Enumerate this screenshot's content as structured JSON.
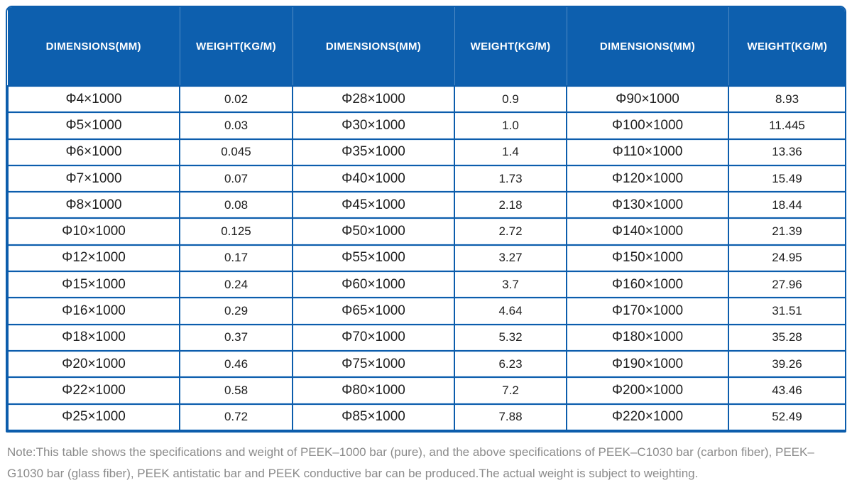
{
  "table": {
    "header_labels": [
      "DIMENSIONS(MM)",
      "WEIGHT(KG/M)",
      "DIMENSIONS(MM)",
      "WEIGHT(KG/M)",
      "DIMENSIONS(MM)",
      "WEIGHT(KG/M)"
    ],
    "rows": [
      [
        "Φ4×1000",
        "0.02",
        "Φ28×1000",
        "0.9",
        "Φ90×1000",
        "8.93"
      ],
      [
        "Φ5×1000",
        "0.03",
        "Φ30×1000",
        "1.0",
        "Φ100×1000",
        "11.445"
      ],
      [
        "Φ6×1000",
        "0.045",
        "Φ35×1000",
        "1.4",
        "Φ110×1000",
        "13.36"
      ],
      [
        "Φ7×1000",
        "0.07",
        "Φ40×1000",
        "1.73",
        "Φ120×1000",
        "15.49"
      ],
      [
        "Φ8×1000",
        "0.08",
        "Φ45×1000",
        "2.18",
        "Φ130×1000",
        "18.44"
      ],
      [
        "Φ10×1000",
        "0.125",
        "Φ50×1000",
        "2.72",
        "Φ140×1000",
        "21.39"
      ],
      [
        "Φ12×1000",
        "0.17",
        "Φ55×1000",
        "3.27",
        "Φ150×1000",
        "24.95"
      ],
      [
        "Φ15×1000",
        "0.24",
        "Φ60×1000",
        "3.7",
        "Φ160×1000",
        "27.96"
      ],
      [
        "Φ16×1000",
        "0.29",
        "Φ65×1000",
        "4.64",
        "Φ170×1000",
        "31.51"
      ],
      [
        "Φ18×1000",
        "0.37",
        "Φ70×1000",
        "5.32",
        "Φ180×1000",
        "35.28"
      ],
      [
        "Φ20×1000",
        "0.46",
        "Φ75×1000",
        "6.23",
        "Φ190×1000",
        "39.26"
      ],
      [
        "Φ22×1000",
        "0.58",
        "Φ80×1000",
        "7.2",
        "Φ200×1000",
        "43.46"
      ],
      [
        "Φ25×1000",
        "0.72",
        "Φ85×1000",
        "7.88",
        "Φ220×1000",
        "52.49"
      ]
    ]
  },
  "note": "Note:This table shows the specifications and weight of PEEK–1000 bar (pure), and the above specifications of PEEK–C1030 bar (carbon fiber), PEEK–G1030 bar (glass fiber), PEEK antistatic bar and PEEK conductive bar can be produced.The actual weight is subject to weighting.",
  "colors": {
    "header_bg": "#0d5fae",
    "border": "#0c5dac",
    "body_text": "#1e1e1e",
    "note_text": "#8b8b8b"
  }
}
